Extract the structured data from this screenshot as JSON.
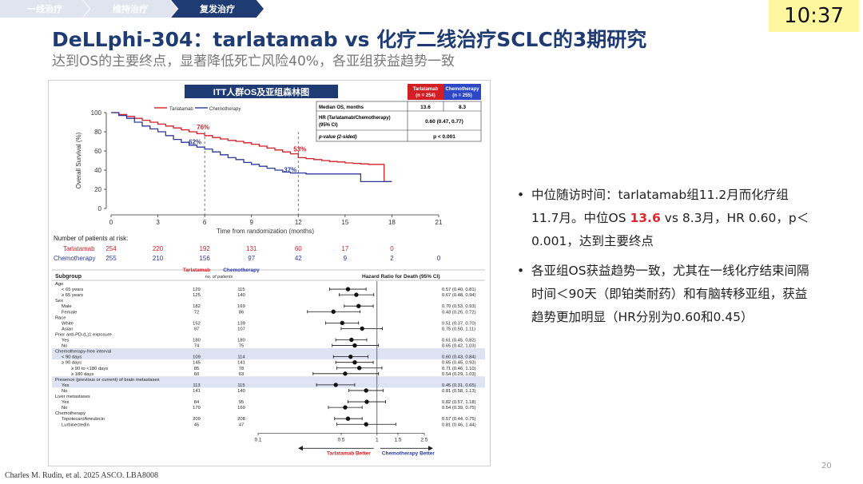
{
  "breadcrumb": [
    "一线治疗",
    "维持治疗",
    "复发治疗"
  ],
  "clock": "10:37",
  "title": "DeLLphi-304：tarlatamab vs 化疗二线治疗SCLC的3期研究",
  "subtitle": "达到OS的主要终点，显著降低死亡风险40%，各亚组获益趋势一致",
  "figure": {
    "header": "ITT人群OS及亚组森林图",
    "legend": [
      "Tarlatamab",
      "Chemotherapy"
    ],
    "km": {
      "ylabel": "Overall Survival (%)",
      "xlabel": "Time from randomization (months)",
      "yticks": [
        "0",
        "20",
        "40",
        "60",
        "80",
        "100"
      ],
      "xticks": [
        "0",
        "3",
        "6",
        "9",
        "12",
        "15",
        "18",
        "21"
      ],
      "labels": {
        "t6": "76%",
        "c6": "62%",
        "t12": "53%",
        "c12": "37%"
      }
    },
    "stats": {
      "arm_t": "Tarlatamab",
      "arm_t_n": "(n = 254)",
      "arm_c": "Chemotherapy",
      "arm_c_n": "(n = 255)",
      "rows": [
        {
          "label": "Median OS, months",
          "t": "13.6",
          "c": "8.3"
        },
        {
          "label": "HR (Tarlatamab/Chemotherapy)",
          "label2": "(95% CI)",
          "v": "0.60 (0.47, 0.77)"
        },
        {
          "label": "p-value (2-sided)",
          "v": "p < 0.001"
        }
      ]
    },
    "risk": {
      "title": "Number of patients at risk:",
      "rows": [
        {
          "arm": "Tarlatamab",
          "vals": [
            "254",
            "220",
            "192",
            "131",
            "60",
            "17",
            "0"
          ]
        },
        {
          "arm": "Chemotherapy",
          "vals": [
            "255",
            "210",
            "156",
            "97",
            "42",
            "9",
            "2",
            "0"
          ]
        }
      ]
    },
    "forest": {
      "col_subgroup": "Subgroup",
      "col_t": "Tarlatamab",
      "col_c": "Chemotherapy",
      "col_np": "no. of patients",
      "col_hr": "Hazard Ratio for Death (95% CI)",
      "axis_ticks": [
        "0.1",
        "0.5",
        "1",
        "1.5",
        "2.5"
      ],
      "better_t": "Tarlatamab Better",
      "better_c": "Chemotherapy Better",
      "rows": [
        {
          "label": "Age",
          "hdr": true
        },
        {
          "label": "< 65 years",
          "t": "129",
          "c": "115",
          "hr": 0.57,
          "lo": 0.4,
          "hi": 0.81,
          "txt": "0.57 (0.40, 0.81)"
        },
        {
          "label": "≥ 65 years",
          "t": "125",
          "c": "140",
          "hr": 0.67,
          "lo": 0.48,
          "hi": 0.94,
          "txt": "0.67 (0.48, 0.94)"
        },
        {
          "label": "Sex",
          "hdr": true
        },
        {
          "label": "Male",
          "t": "182",
          "c": "169",
          "hr": 0.7,
          "lo": 0.53,
          "hi": 0.93,
          "txt": "0.70 (0.53, 0.93)"
        },
        {
          "label": "Female",
          "t": "72",
          "c": "86",
          "hr": 0.43,
          "lo": 0.26,
          "hi": 0.72,
          "txt": "0.43 (0.26, 0.72)"
        },
        {
          "label": "Race",
          "hdr": true
        },
        {
          "label": "White",
          "t": "152",
          "c": "139",
          "hr": 0.51,
          "lo": 0.37,
          "hi": 0.7,
          "txt": "0.51 (0.37, 0.70)"
        },
        {
          "label": "Asian",
          "t": "97",
          "c": "107",
          "hr": 0.75,
          "lo": 0.5,
          "hi": 1.11,
          "txt": "0.75 (0.50, 1.11)"
        },
        {
          "label": "Prior anti-PD-(L)1 exposure",
          "hdr": true
        },
        {
          "label": "Yes",
          "t": "180",
          "c": "180",
          "hr": 0.61,
          "lo": 0.45,
          "hi": 0.82,
          "txt": "0.61 (0.45, 0.82)"
        },
        {
          "label": "No",
          "t": "74",
          "c": "75",
          "hr": 0.65,
          "lo": 0.42,
          "hi": 1.03,
          "txt": "0.65 (0.42, 1.03)"
        },
        {
          "label": "Chemotherapy-free interval",
          "hdr": true,
          "shade": true
        },
        {
          "label": "< 90 days",
          "t": "109",
          "c": "114",
          "hr": 0.6,
          "lo": 0.43,
          "hi": 0.84,
          "txt": "0.60 (0.43, 0.84)",
          "shade": true
        },
        {
          "label": "≥ 90 days",
          "t": "145",
          "c": "141",
          "hr": 0.65,
          "lo": 0.45,
          "hi": 0.93,
          "txt": "0.65 (0.45, 0.93)"
        },
        {
          "label": "≥ 90 to <180 days",
          "t": "85",
          "c": "78",
          "hr": 0.71,
          "lo": 0.46,
          "hi": 1.1,
          "txt": "0.71 (0.46, 1.10)"
        },
        {
          "label": "≥ 180 days",
          "t": "60",
          "c": "63",
          "hr": 0.54,
          "lo": 0.29,
          "hi": 1.03,
          "txt": "0.54 (0.29, 1.03)"
        },
        {
          "label": "Presence (previous or current) of brain metastases",
          "hdr": true,
          "shade": true
        },
        {
          "label": "Yes",
          "t": "113",
          "c": "115",
          "hr": 0.45,
          "lo": 0.31,
          "hi": 0.65,
          "txt": "0.45 (0.31, 0.65)",
          "shade": true
        },
        {
          "label": "No",
          "t": "141",
          "c": "140",
          "hr": 0.81,
          "lo": 0.58,
          "hi": 1.13,
          "txt": "0.81 (0.58, 1.13)"
        },
        {
          "label": "Liver metastases",
          "hdr": true
        },
        {
          "label": "Yes",
          "t": "84",
          "c": "95",
          "hr": 0.82,
          "lo": 0.57,
          "hi": 1.18,
          "txt": "0.82 (0.57, 1.18)"
        },
        {
          "label": "No",
          "t": "170",
          "c": "160",
          "hr": 0.54,
          "lo": 0.39,
          "hi": 0.75,
          "txt": "0.54 (0.39, 0.75)"
        },
        {
          "label": "Chemotherapy",
          "hdr": true
        },
        {
          "label": "Topotecan/Amrubicin",
          "t": "209",
          "c": "208",
          "hr": 0.57,
          "lo": 0.44,
          "hi": 0.75,
          "txt": "0.57 (0.44, 0.75)"
        },
        {
          "label": "Lurbinectedin",
          "t": "45",
          "c": "47",
          "hr": 0.81,
          "lo": 0.46,
          "hi": 1.44,
          "txt": "0.81 (0.46, 1.44)"
        }
      ]
    }
  },
  "bullets": [
    {
      "pre": "中位随访时间：tarlatamab组11.2月而化疗组11.7月。中位OS ",
      "hl": "13.6",
      "post": " vs 8.3月，HR 0.60，p＜0.001，达到主要终点"
    },
    {
      "pre": "各亚组OS获益趋势一致，尤其在一线化疗结束间隔时间＜90天（即铂类耐药）和有脑转移亚组，获益趋势更加明显（HR分别为0.60和0.45）",
      "hl": "",
      "post": ""
    }
  ],
  "footer": "Charles M. Rudin, et al. 2025 ASCO. LBA8008",
  "page_number": "20",
  "colors": {
    "tarlatamab": "#d21f26",
    "chemotherapy": "#2d3a9a",
    "title": "#1f3b73"
  },
  "chart_data": [
    {
      "type": "line",
      "title": "",
      "xlabel": "Time from randomization (months)",
      "ylabel": "Overall Survival (%)",
      "xlim": [
        0,
        21
      ],
      "ylim": [
        0,
        100
      ],
      "series": [
        {
          "name": "Tarlatamab",
          "x": [
            0,
            0.5,
            1,
            1.5,
            2,
            2.5,
            3,
            3.5,
            4,
            4.5,
            5,
            5.5,
            6,
            6.5,
            7,
            7.5,
            8,
            8.5,
            9,
            9.5,
            10,
            10.5,
            11,
            11.5,
            12,
            12.5,
            13,
            13.5,
            14,
            14.5,
            15,
            15.5,
            16,
            16.5,
            17,
            17.5,
            18
          ],
          "y": [
            100,
            98,
            96,
            94,
            92,
            90,
            88,
            86,
            84,
            82,
            80,
            78,
            76,
            74,
            72.5,
            71,
            70,
            68.5,
            67,
            65,
            63,
            61,
            59,
            57,
            53,
            52,
            51,
            50,
            49,
            48.5,
            47.5,
            47,
            46.5,
            46,
            46,
            28,
            28
          ]
        },
        {
          "name": "Chemotherapy",
          "x": [
            0,
            0.5,
            1,
            1.5,
            2,
            2.5,
            3,
            3.5,
            4,
            4.5,
            5,
            5.5,
            6,
            6.5,
            7,
            7.5,
            8,
            8.5,
            9,
            9.5,
            10,
            10.5,
            11,
            11.5,
            12,
            12.5,
            13,
            13.5,
            14,
            14.5,
            15,
            15.5,
            16,
            16.5,
            17,
            17.5,
            18
          ],
          "y": [
            100,
            97,
            94,
            90,
            86,
            83,
            80,
            76,
            72,
            69,
            66,
            64,
            62,
            59,
            56,
            53,
            51,
            48,
            46,
            44,
            42,
            40,
            38,
            37,
            37,
            36,
            36,
            36,
            36,
            36,
            36,
            36,
            28,
            28,
            28,
            28,
            28
          ]
        }
      ],
      "annotations": [
        "76%",
        "62%",
        "53%",
        "37%"
      ]
    },
    {
      "type": "scatter",
      "title": "Hazard Ratio for Death (95% CI)",
      "xlabel": "",
      "xscale": "log",
      "xlim": [
        0.1,
        2.5
      ],
      "categories": [
        "< 65 years",
        "≥ 65 years",
        "Male",
        "Female",
        "White",
        "Asian",
        "Yes",
        "No",
        "< 90 days",
        "≥ 90 days",
        "≥ 90 to <180 days",
        "≥ 180 days",
        "Yes",
        "No",
        "Yes",
        "No",
        "Topotecan/Amrubicin",
        "Lurbinectedin"
      ],
      "values": [
        0.57,
        0.67,
        0.7,
        0.43,
        0.51,
        0.75,
        0.61,
        0.65,
        0.6,
        0.65,
        0.71,
        0.54,
        0.45,
        0.81,
        0.82,
        0.54,
        0.57,
        0.81
      ]
    }
  ]
}
